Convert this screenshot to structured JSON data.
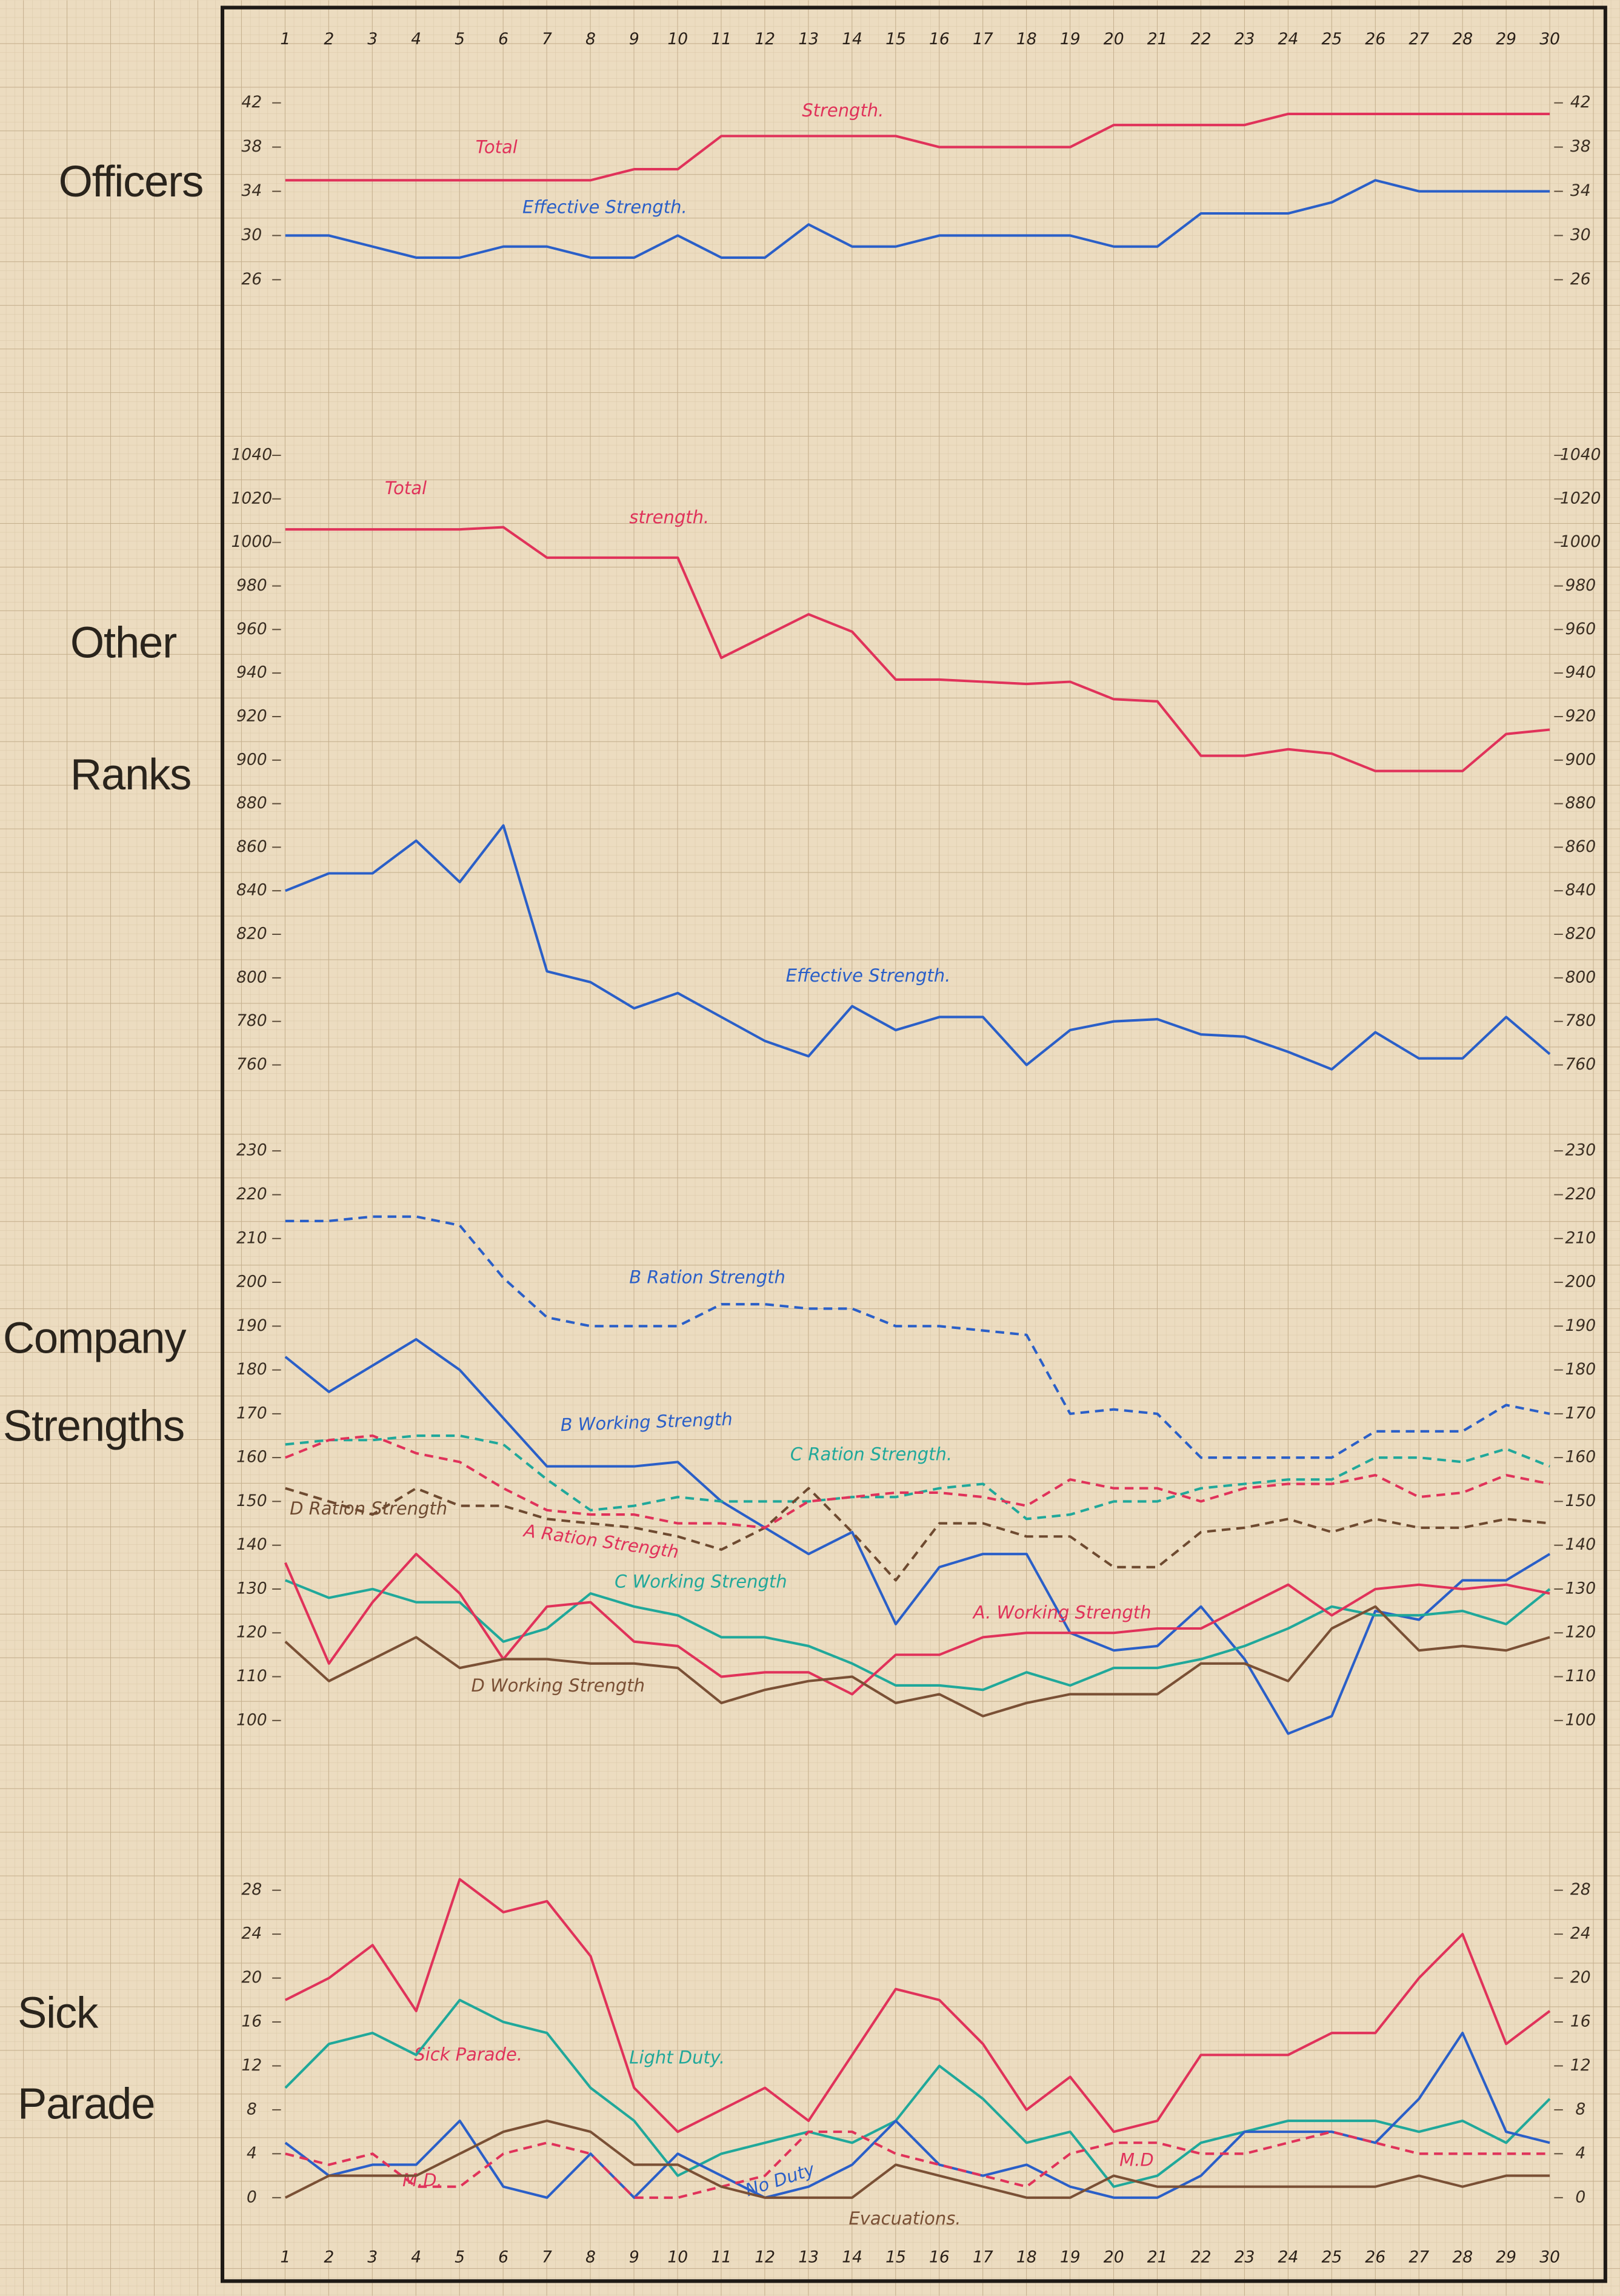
{
  "chart_data": [
    {
      "type": "line",
      "title": "Officers",
      "x": [
        1,
        2,
        3,
        4,
        5,
        6,
        7,
        8,
        9,
        10,
        11,
        12,
        13,
        14,
        15,
        16,
        17,
        18,
        19,
        20,
        21,
        22,
        23,
        24,
        25,
        26,
        27,
        28,
        29,
        30
      ],
      "xlim": [
        1,
        30
      ],
      "ylim": [
        24,
        44
      ],
      "yticks": [
        26,
        30,
        34,
        38,
        42
      ],
      "annotations": [
        {
          "text": "Strength.",
          "color": "#e0325a"
        }
      ],
      "series": [
        {
          "name": "Total",
          "color": "#e0325a",
          "values": [
            35,
            35,
            35,
            35,
            35,
            35,
            35,
            35,
            36,
            36,
            39,
            39,
            39,
            39,
            39,
            38,
            38,
            38,
            38,
            40,
            40,
            40,
            40,
            41,
            41,
            41,
            41,
            41,
            41,
            41
          ]
        },
        {
          "name": "Effective Strength.",
          "color": "#2a5fc8",
          "values": [
            30,
            30,
            29,
            28,
            28,
            29,
            29,
            28,
            28,
            30,
            28,
            28,
            31,
            29,
            29,
            30,
            30,
            30,
            30,
            29,
            29,
            32,
            32,
            32,
            33,
            35,
            34,
            34,
            34,
            34
          ]
        }
      ]
    },
    {
      "type": "line",
      "title": "Other Ranks",
      "x": [
        1,
        2,
        3,
        4,
        5,
        6,
        7,
        8,
        9,
        10,
        11,
        12,
        13,
        14,
        15,
        16,
        17,
        18,
        19,
        20,
        21,
        22,
        23,
        24,
        25,
        26,
        27,
        28,
        29,
        30
      ],
      "xlim": [
        1,
        30
      ],
      "ylim": [
        740,
        1050
      ],
      "yticks": [
        760,
        780,
        800,
        820,
        840,
        860,
        880,
        900,
        920,
        940,
        960,
        980,
        1000,
        1020,
        1040
      ],
      "annotations": [
        {
          "text": "strength.",
          "color": "#e0325a"
        }
      ],
      "series": [
        {
          "name": "Total",
          "color": "#e0325a",
          "values": [
            1006,
            1006,
            1006,
            1006,
            1006,
            1007,
            993,
            993,
            993,
            993,
            947,
            957,
            967,
            959,
            937,
            937,
            936,
            935,
            936,
            928,
            927,
            902,
            902,
            905,
            903,
            895,
            895,
            895,
            912,
            914
          ]
        },
        {
          "name": "Effective Strength.",
          "color": "#2a5fc8",
          "values": [
            840,
            848,
            848,
            863,
            844,
            870,
            803,
            798,
            786,
            793,
            782,
            771,
            764,
            787,
            776,
            782,
            782,
            760,
            776,
            780,
            781,
            774,
            773,
            766,
            758,
            775,
            763,
            763,
            782,
            765
          ]
        }
      ]
    },
    {
      "type": "line",
      "title": "Company Strengths",
      "x": [
        1,
        2,
        3,
        4,
        5,
        6,
        7,
        8,
        9,
        10,
        11,
        12,
        13,
        14,
        15,
        16,
        17,
        18,
        19,
        20,
        21,
        22,
        23,
        24,
        25,
        26,
        27,
        28,
        29,
        30
      ],
      "xlim": [
        1,
        30
      ],
      "ylim": [
        90,
        235
      ],
      "yticks": [
        100,
        110,
        120,
        130,
        140,
        150,
        160,
        170,
        180,
        190,
        200,
        210,
        220,
        230
      ],
      "series": [
        {
          "name": "B Ration Strength",
          "color": "#2a5fc8",
          "style": "dashed",
          "values": [
            214,
            214,
            215,
            215,
            213,
            201,
            192,
            190,
            190,
            190,
            195,
            195,
            194,
            194,
            190,
            190,
            189,
            188,
            170,
            171,
            170,
            160,
            160,
            160,
            160,
            166,
            166,
            166,
            172,
            170
          ]
        },
        {
          "name": "B Working Strength",
          "color": "#2a5fc8",
          "values": [
            183,
            175,
            181,
            187,
            180,
            169,
            158,
            158,
            158,
            159,
            150,
            144,
            138,
            143,
            122,
            135,
            138,
            138,
            120,
            116,
            117,
            126,
            114,
            97,
            101,
            125,
            123,
            132,
            132,
            138
          ]
        },
        {
          "name": "C Ration Strength.",
          "color": "#20a89a",
          "style": "dashed",
          "values": [
            163,
            164,
            164,
            165,
            165,
            163,
            155,
            148,
            149,
            151,
            150,
            150,
            150,
            151,
            151,
            153,
            154,
            146,
            147,
            150,
            150,
            153,
            154,
            155,
            155,
            160,
            160,
            159,
            162,
            158
          ]
        },
        {
          "name": "D Ration Strength",
          "color": "#6e4a30",
          "style": "dashed",
          "values": [
            153,
            150,
            147,
            153,
            149,
            149,
            146,
            145,
            144,
            142,
            139,
            144,
            153,
            143,
            132,
            145,
            145,
            142,
            142,
            135,
            135,
            143,
            144,
            146,
            143,
            146,
            144,
            144,
            146,
            145
          ]
        },
        {
          "name": "A Ration Strength",
          "color": "#e0325a",
          "style": "dashed",
          "values": [
            160,
            164,
            165,
            161,
            159,
            153,
            148,
            147,
            147,
            145,
            145,
            144,
            150,
            151,
            152,
            152,
            151,
            149,
            155,
            153,
            153,
            150,
            153,
            154,
            154,
            156,
            151,
            152,
            156,
            154
          ]
        },
        {
          "name": "C Working Strength",
          "color": "#20a89a",
          "values": [
            132,
            128,
            130,
            127,
            127,
            118,
            121,
            129,
            126,
            124,
            119,
            119,
            117,
            113,
            108,
            108,
            107,
            111,
            108,
            112,
            112,
            114,
            117,
            121,
            126,
            124,
            124,
            125,
            122,
            130
          ]
        },
        {
          "name": "A. Working Strength",
          "color": "#e0325a",
          "values": [
            136,
            113,
            127,
            138,
            129,
            114,
            126,
            127,
            118,
            117,
            110,
            111,
            111,
            106,
            115,
            115,
            119,
            120,
            120,
            120,
            121,
            121,
            126,
            131,
            124,
            130,
            131,
            130,
            131,
            129
          ]
        },
        {
          "name": "D Working Strength",
          "color": "#7a5035",
          "values": [
            118,
            109,
            114,
            119,
            112,
            114,
            114,
            113,
            113,
            112,
            104,
            107,
            109,
            110,
            104,
            106,
            101,
            104,
            106,
            106,
            106,
            113,
            113,
            109,
            121,
            126,
            116,
            117,
            116,
            119
          ]
        }
      ]
    },
    {
      "type": "line",
      "title": "Sick Parade",
      "x": [
        1,
        2,
        3,
        4,
        5,
        6,
        7,
        8,
        9,
        10,
        11,
        12,
        13,
        14,
        15,
        16,
        17,
        18,
        19,
        20,
        21,
        22,
        23,
        24,
        25,
        26,
        27,
        28,
        29,
        30
      ],
      "xlim": [
        1,
        30
      ],
      "ylim": [
        -2,
        30
      ],
      "yticks": [
        0,
        4,
        8,
        12,
        16,
        20,
        24,
        28
      ],
      "annotations": [
        {
          "text": "M.D",
          "color": "#e0325a"
        }
      ],
      "series": [
        {
          "name": "Sick Parade.",
          "color": "#e0325a",
          "values": [
            18,
            20,
            23,
            17,
            29,
            26,
            27,
            22,
            10,
            6,
            8,
            10,
            7,
            13,
            19,
            18,
            14,
            8,
            11,
            6,
            7,
            13,
            13,
            13,
            15,
            15,
            20,
            24,
            14,
            17
          ]
        },
        {
          "name": "Light Duty.",
          "color": "#20a89a",
          "values": [
            10,
            14,
            15,
            13,
            18,
            16,
            15,
            10,
            7,
            2,
            4,
            5,
            6,
            5,
            7,
            12,
            9,
            5,
            6,
            1,
            2,
            5,
            6,
            7,
            7,
            7,
            6,
            7,
            5,
            9
          ]
        },
        {
          "name": "No Duty",
          "color": "#2a5fc8",
          "values": [
            5,
            2,
            3,
            3,
            7,
            1,
            0,
            4,
            0,
            4,
            2,
            0,
            1,
            3,
            7,
            3,
            2,
            3,
            1,
            0,
            0,
            2,
            6,
            6,
            6,
            5,
            9,
            15,
            6,
            5
          ]
        },
        {
          "name": "M.D.",
          "color": "#e0325a",
          "style": "dashed",
          "values": [
            4,
            3,
            4,
            1,
            1,
            4,
            5,
            4,
            0,
            0,
            1,
            2,
            6,
            6,
            4,
            3,
            2,
            1,
            4,
            5,
            5,
            4,
            4,
            5,
            6,
            5,
            4,
            4,
            4,
            4
          ]
        },
        {
          "name": "Evacuations.",
          "color": "#7a5035",
          "values": [
            0,
            2,
            2,
            2,
            4,
            6,
            7,
            6,
            3,
            3,
            1,
            0,
            0,
            0,
            3,
            2,
            1,
            0,
            0,
            2,
            1,
            1,
            1,
            1,
            1,
            1,
            2,
            1,
            2,
            2
          ]
        }
      ]
    }
  ]
}
